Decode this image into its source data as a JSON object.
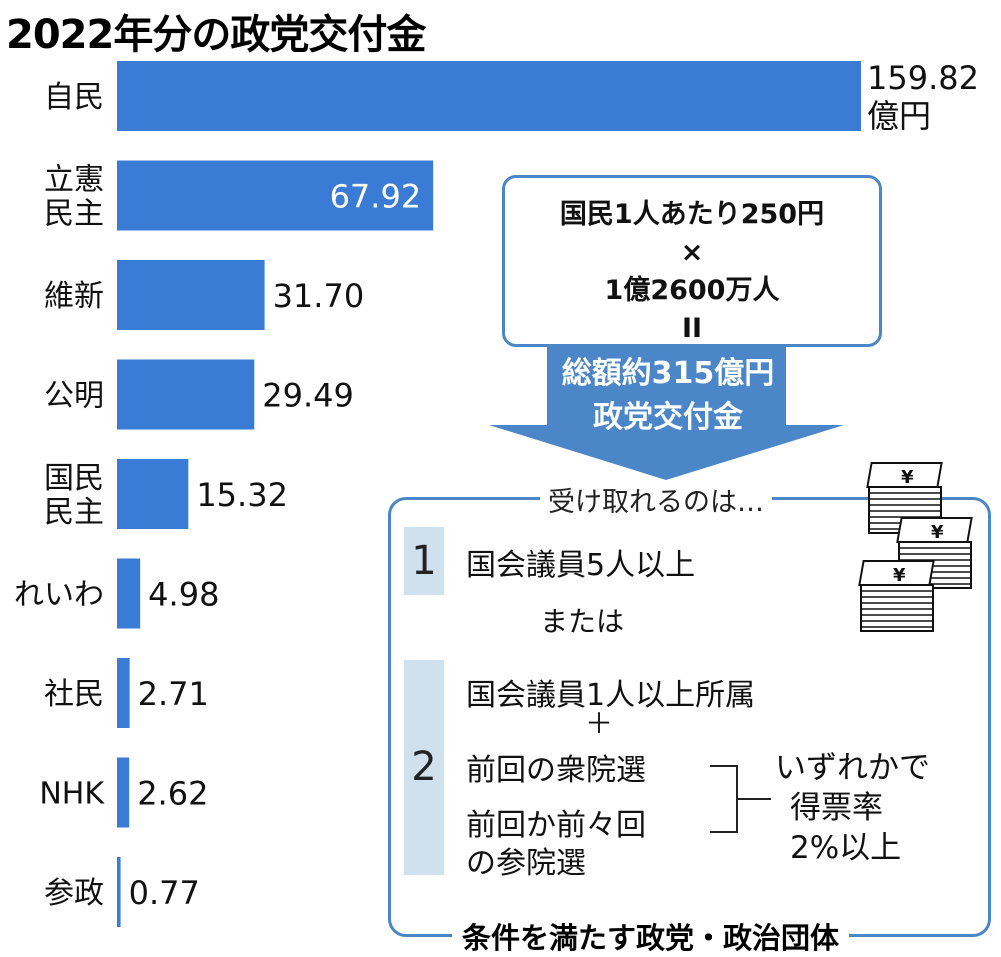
{
  "title": "2022年分の政党交付金",
  "chart_data": {
    "type": "bar",
    "orientation": "horizontal",
    "title": "2022年分の政党交付金",
    "unit_label": "億円",
    "categories": [
      [
        "自民"
      ],
      [
        "立憲",
        "民主"
      ],
      [
        "維新"
      ],
      [
        "公明"
      ],
      [
        "国民",
        "民主"
      ],
      [
        "れいわ"
      ],
      [
        "社民"
      ],
      [
        "NHK"
      ],
      [
        "参政"
      ]
    ],
    "values": [
      159.82,
      67.92,
      31.7,
      29.49,
      15.32,
      4.98,
      2.71,
      2.62,
      0.77
    ],
    "value_labels": [
      "159.82",
      "67.92",
      "31.70",
      "29.49",
      "15.32",
      "4.98",
      "2.71",
      "2.62",
      "0.77"
    ],
    "xlim": [
      0,
      159.82
    ],
    "bar_color": "#3a7bd5",
    "grid": false
  },
  "formula": {
    "line1": "国民1人あたり250円",
    "line2": "×",
    "line3": "1億2600万人",
    "line4": "II"
  },
  "total": {
    "line1": "総額約315億円",
    "line2": "政党交付金"
  },
  "conditions": {
    "caption": "受け取れるのは…",
    "item1_number": "1",
    "item1_text": "国会議員5人以上",
    "or_text": "または",
    "item2_number": "2",
    "item2_line1": "国会議員1人以上所属",
    "plus": "＋",
    "item2_line2": "前回の衆院選",
    "item2_line3": "前回か前々回",
    "item2_line4": "の参院選",
    "either_line1": "いずれかで",
    "either_line2": "得票率",
    "either_line3": "2%以上",
    "footer": "条件を満たす政党・政治団体"
  },
  "icons": {
    "money": "yen-bill-stack-icon",
    "yen_symbol": "¥"
  },
  "colors": {
    "accent": "#3a7bd5",
    "border": "#4a86c8",
    "pill": "#cfe1ef"
  }
}
